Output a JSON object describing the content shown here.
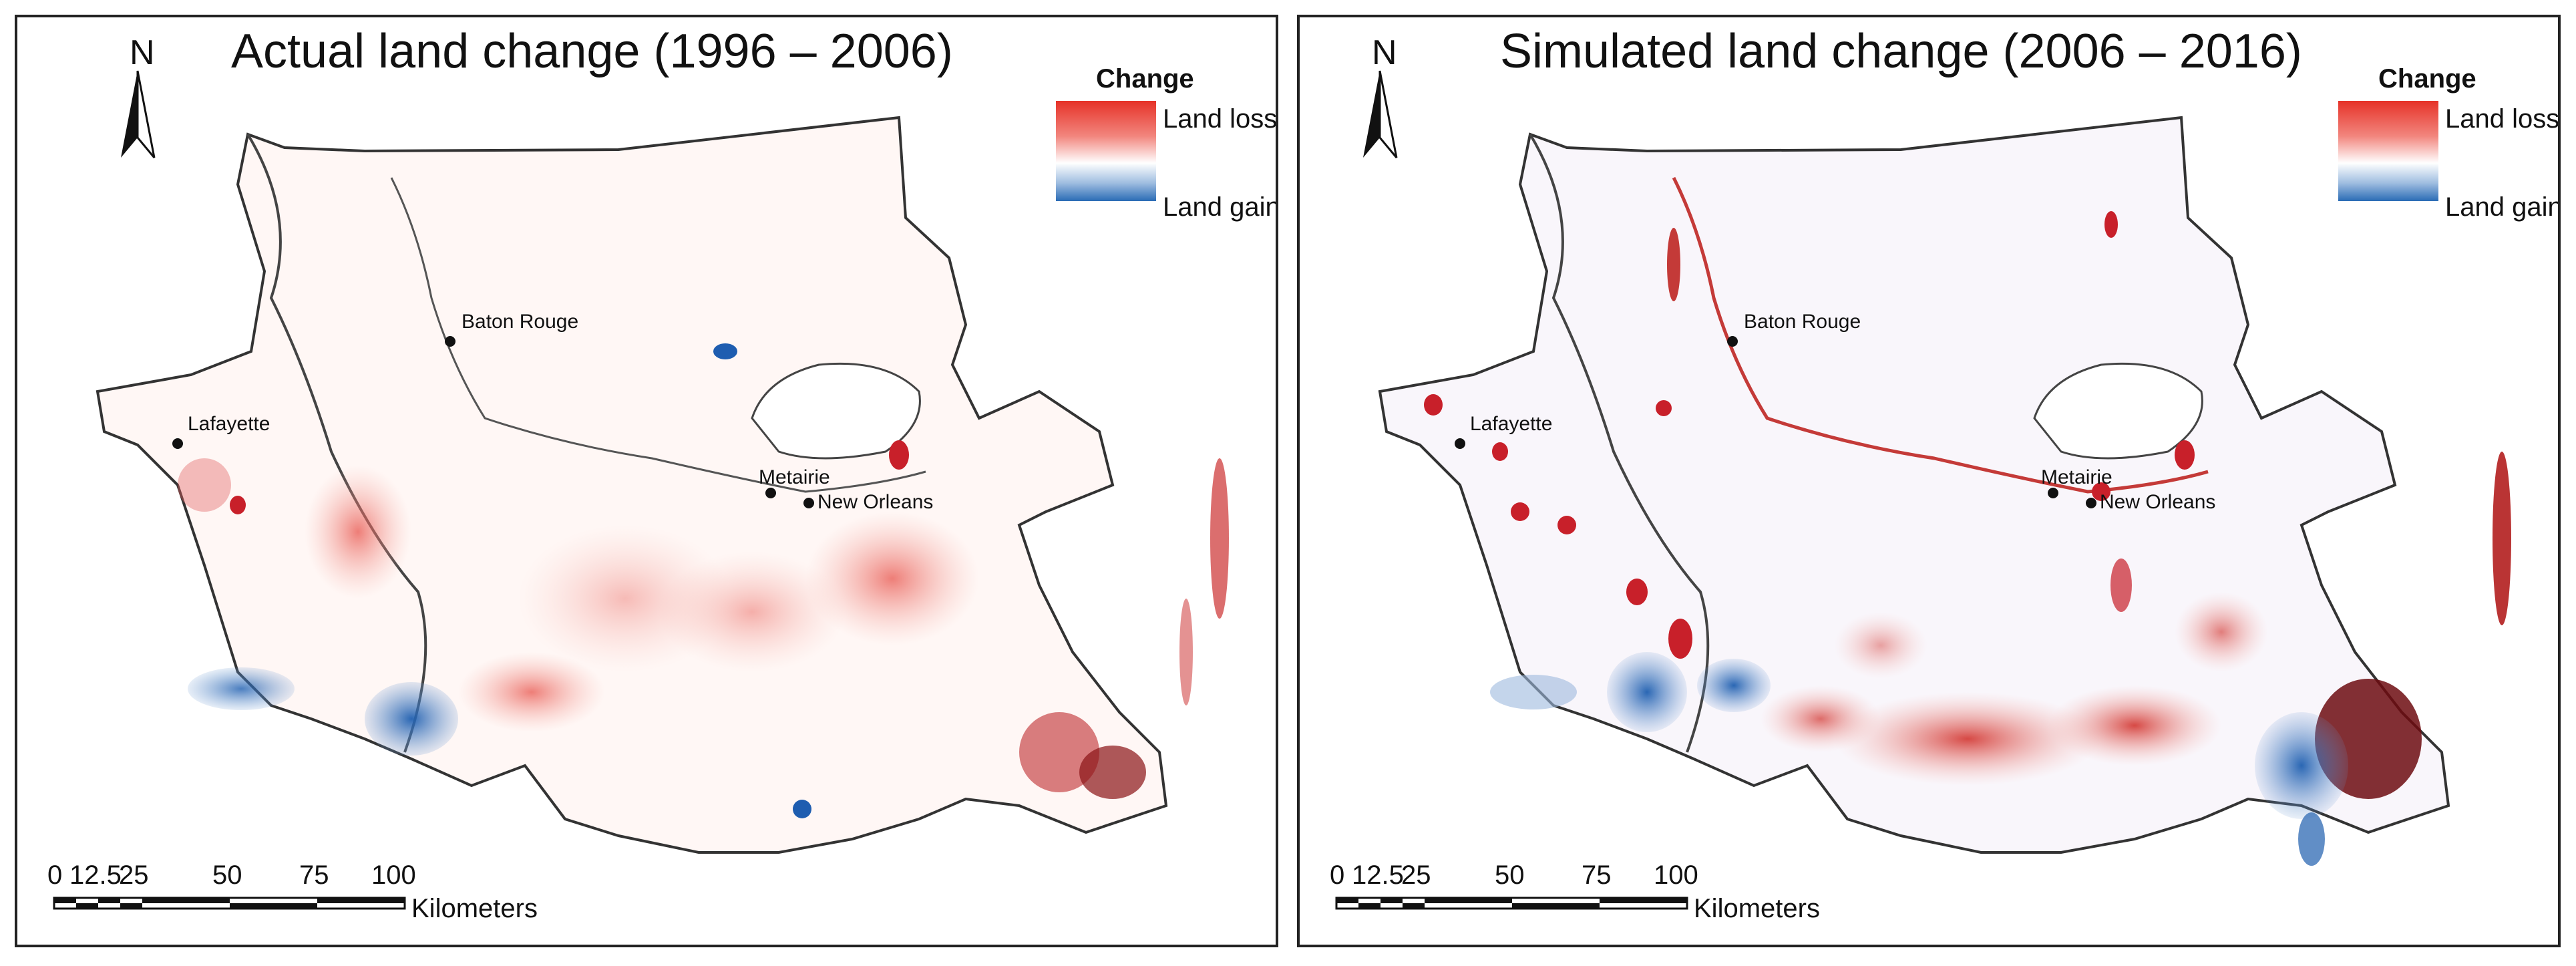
{
  "panels": [
    {
      "title": "Actual land change (1996 – 2006)",
      "north": "N",
      "legend": {
        "title": "Change",
        "high_label": "Land loss",
        "low_label": "Land gain"
      },
      "cities": [
        "Baton Rouge",
        "Lafayette",
        "Metairie",
        "New Orleans"
      ],
      "scale": {
        "ticks": [
          "0",
          "12.5",
          "25",
          "50",
          "75",
          "100"
        ],
        "unit": "Kilometers"
      }
    },
    {
      "title": "Simulated land change  (2006 – 2016)",
      "north": "N",
      "legend": {
        "title": "Change",
        "high_label": "Land loss",
        "low_label": "Land gain"
      },
      "cities": [
        "Baton Rouge",
        "Lafayette",
        "Metairie",
        "New Orleans"
      ],
      "scale": {
        "ticks": [
          "0",
          "12.5",
          "25",
          "50",
          "75",
          "100"
        ],
        "unit": "Kilometers"
      }
    }
  ],
  "colors": {
    "loss": "#d7191c",
    "gain": "#2166ac",
    "neutral": "#ffffff",
    "outline": "#333333"
  }
}
